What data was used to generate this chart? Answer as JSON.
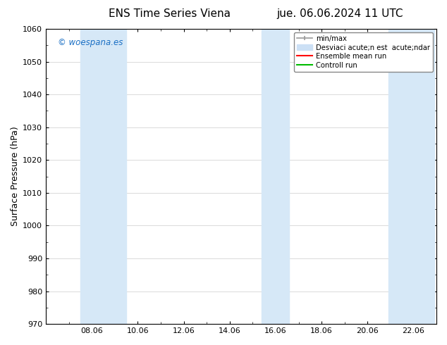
{
  "title_left": "ENS Time Series Viena",
  "title_right": "jue. 06.06.2024 11 UTC",
  "ylabel": "Surface Pressure (hPa)",
  "ylim": [
    970,
    1060
  ],
  "yticks": [
    970,
    980,
    990,
    1000,
    1010,
    1020,
    1030,
    1040,
    1050,
    1060
  ],
  "xtick_labels": [
    "08.06",
    "10.06",
    "12.06",
    "14.06",
    "16.06",
    "18.06",
    "20.06",
    "22.06"
  ],
  "xtick_positions": [
    2,
    4,
    6,
    8,
    10,
    12,
    14,
    16
  ],
  "x_min": 0,
  "x_max": 17,
  "shade_bands": [
    {
      "x_start": 1.5,
      "x_end": 3.5
    },
    {
      "x_start": 9.4,
      "x_end": 10.6
    },
    {
      "x_start": 14.9,
      "x_end": 16.9
    }
  ],
  "shade_color": "#d6e8f7",
  "watermark_text": "© woespana.es",
  "watermark_color": "#1a6fc4",
  "legend_label_minmax": "min/max",
  "legend_label_std": "Desviaci acute;n est  acute;ndar",
  "legend_label_ens": "Ensemble mean run",
  "legend_label_ctrl": "Controll run",
  "legend_color_minmax": "#999999",
  "legend_color_std": "#cce0f5",
  "legend_color_ens": "#ff0000",
  "legend_color_ctrl": "#00bb00",
  "bg_color": "#ffffff",
  "plot_bg_color": "#ffffff",
  "grid_color": "#cccccc",
  "title_fontsize": 11,
  "ylabel_fontsize": 9,
  "tick_labelsize": 8
}
